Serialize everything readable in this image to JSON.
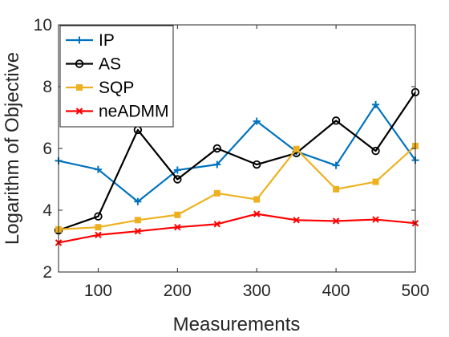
{
  "chart_data": {
    "type": "line",
    "xlabel": "Measurements",
    "ylabel": "Logarithm of Objective",
    "xlim": [
      50,
      500
    ],
    "ylim": [
      2,
      10
    ],
    "xticks": [
      100,
      200,
      300,
      400,
      500
    ],
    "yticks": [
      2,
      4,
      6,
      8,
      10
    ],
    "grid": false,
    "legend_position": "top-left",
    "x": [
      50,
      100,
      150,
      200,
      250,
      300,
      350,
      400,
      450,
      500
    ],
    "series": [
      {
        "name": "IP",
        "color": "#0072BD",
        "marker": "plus",
        "values": [
          5.6,
          5.32,
          4.28,
          5.3,
          5.48,
          6.88,
          5.9,
          5.45,
          7.42,
          5.62
        ]
      },
      {
        "name": "AS",
        "color": "#000000",
        "marker": "circle",
        "values": [
          3.35,
          3.8,
          6.6,
          5.0,
          6.0,
          5.48,
          5.85,
          6.9,
          5.92,
          7.82
        ]
      },
      {
        "name": "SQP",
        "color": "#EDB120",
        "marker": "square",
        "values": [
          3.38,
          3.45,
          3.68,
          3.85,
          4.55,
          4.35,
          5.98,
          4.68,
          4.92,
          6.08
        ]
      },
      {
        "name": "neADMM",
        "color": "#FF0000",
        "marker": "x",
        "values": [
          2.95,
          3.2,
          3.32,
          3.45,
          3.55,
          3.88,
          3.68,
          3.65,
          3.7,
          3.58
        ]
      }
    ]
  }
}
